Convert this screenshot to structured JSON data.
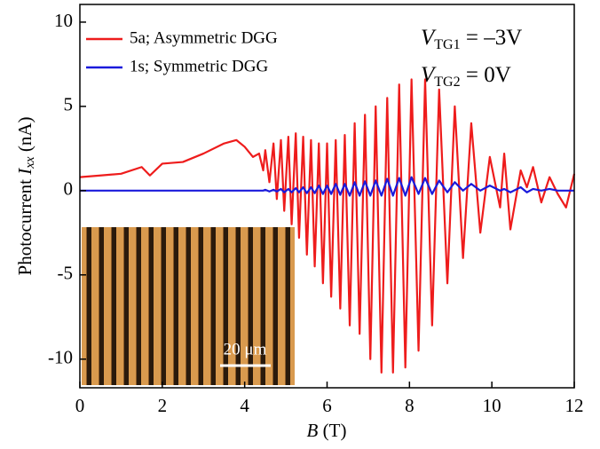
{
  "chart_data": {
    "type": "line",
    "x_label": {
      "symbol": "B",
      "unit": "(T)"
    },
    "y_label": {
      "prefix": "Photocurrent",
      "symbol": "I",
      "sub": "xx",
      "unit": "(nA)"
    },
    "annotations": [
      {
        "symbol": "V",
        "sub": "TG1",
        "text": "= –3V"
      },
      {
        "symbol": "V",
        "sub": "TG2",
        "text": "= 0V"
      }
    ],
    "inset_scale_label": "20 μm",
    "legend": "upper left",
    "xlim": [
      0,
      12
    ],
    "xticks": [
      0,
      2,
      4,
      6,
      8,
      10,
      12
    ],
    "ylim": [
      -11.7,
      11.05
    ],
    "yticks": [
      -10,
      -5,
      0,
      5,
      10
    ],
    "x": [
      0,
      0.5,
      1.0,
      1.5,
      1.7,
      2.0,
      2.5,
      3.0,
      3.5,
      3.8,
      4.0,
      4.2,
      4.35,
      4.45,
      4.5,
      4.6,
      4.7,
      4.78,
      4.88,
      4.96,
      5.06,
      5.14,
      5.24,
      5.32,
      5.42,
      5.51,
      5.61,
      5.7,
      5.8,
      5.9,
      6.0,
      6.1,
      6.21,
      6.32,
      6.43,
      6.55,
      6.67,
      6.79,
      6.92,
      7.05,
      7.18,
      7.32,
      7.46,
      7.6,
      7.75,
      7.9,
      8.05,
      8.22,
      8.38,
      8.55,
      8.72,
      8.92,
      9.1,
      9.3,
      9.5,
      9.72,
      9.95,
      10.2,
      10.3,
      10.45,
      10.7,
      10.85,
      11.0,
      11.2,
      11.4,
      11.6,
      11.8,
      12.0
    ],
    "series": [
      {
        "name": "5a; Asymmetric DGG",
        "color": "#ee1c1c",
        "values": [
          0.8,
          0.9,
          1.0,
          1.4,
          0.9,
          1.6,
          1.7,
          2.2,
          2.8,
          3.0,
          2.6,
          2.0,
          2.2,
          1.2,
          2.4,
          0.5,
          2.8,
          -0.5,
          3.0,
          -1.2,
          3.2,
          -2.0,
          3.4,
          -2.8,
          3.2,
          -3.8,
          3.0,
          -4.5,
          2.8,
          -5.5,
          2.8,
          -6.3,
          3.0,
          -7.0,
          3.3,
          -8.0,
          4.0,
          -8.5,
          4.5,
          -10.0,
          5.0,
          -10.8,
          5.5,
          -10.8,
          6.3,
          -10.5,
          6.6,
          -9.5,
          6.6,
          -8.0,
          6.0,
          -5.5,
          5.0,
          -4.0,
          4.0,
          -2.5,
          2.0,
          -1.0,
          2.2,
          -2.3,
          1.2,
          0.2,
          1.4,
          -0.7,
          0.8,
          -0.2,
          -1.0,
          1.0
        ]
      },
      {
        "name": "1s; Symmetric DGG",
        "color": "#1a1adb",
        "values": [
          0,
          0,
          0,
          0,
          0,
          0,
          0,
          0,
          0,
          0,
          0,
          0,
          0,
          0,
          0.05,
          -0.05,
          0.05,
          -0.05,
          0.1,
          -0.1,
          0.1,
          -0.1,
          0.15,
          -0.1,
          0.2,
          -0.15,
          0.2,
          -0.15,
          0.3,
          -0.2,
          0.3,
          -0.2,
          0.4,
          -0.25,
          0.4,
          -0.3,
          0.5,
          -0.3,
          0.55,
          -0.3,
          0.6,
          -0.3,
          0.7,
          -0.3,
          0.75,
          -0.3,
          0.8,
          -0.2,
          0.75,
          -0.2,
          0.6,
          -0.1,
          0.5,
          0.0,
          0.4,
          0.0,
          0.3,
          0.0,
          0.1,
          -0.1,
          0.2,
          -0.1,
          0.1,
          0.0,
          0.1,
          0.0,
          0.0,
          0.0
        ]
      }
    ]
  }
}
